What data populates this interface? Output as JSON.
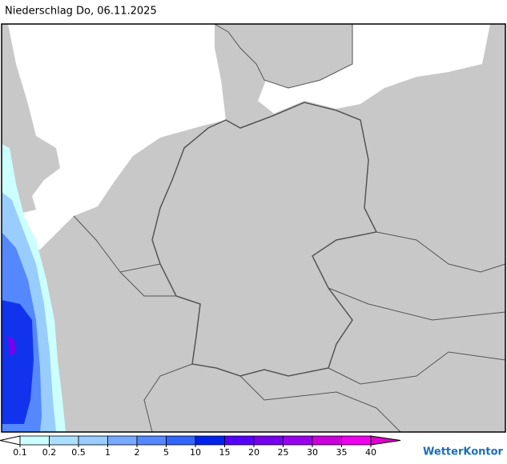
{
  "header": {
    "title": "Niederschlag Do, 06.11.2025"
  },
  "legend": {
    "labels": [
      0.1,
      0.2,
      0.5,
      1,
      2,
      5,
      10,
      15,
      20,
      25,
      30,
      35,
      40
    ],
    "colors": [
      "#ffffff",
      "#ccffff",
      "#aadfff",
      "#99ccff",
      "#77aaff",
      "#5588ff",
      "#3366ff",
      "#0022ee",
      "#5500ff",
      "#7700ee",
      "#9900ee",
      "#cc00dd",
      "#ee00ee",
      "#dd00cc"
    ]
  },
  "brand": "WetterKontor"
}
